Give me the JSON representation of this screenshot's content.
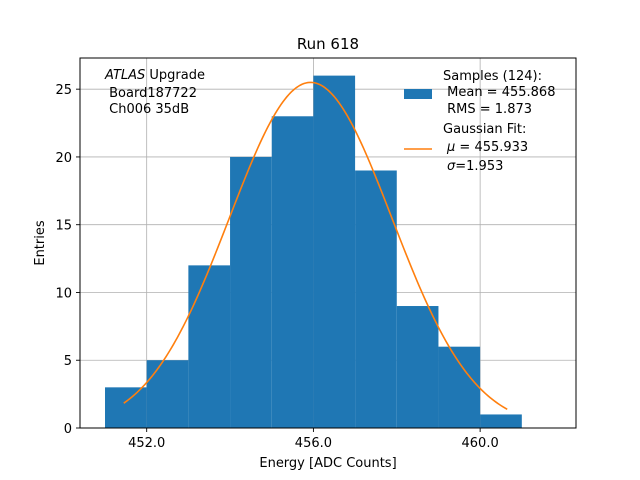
{
  "chart_data": {
    "type": "bar",
    "title": "Run 618",
    "xlabel": "Energy [ADC Counts]",
    "ylabel": "Entries",
    "xlim": [
      450.4,
      462.3
    ],
    "ylim": [
      0,
      27.3
    ],
    "xticks": [
      452.0,
      456.0,
      460.0
    ],
    "xtick_labels": [
      "452.0",
      "456.0",
      "460.0"
    ],
    "yticks": [
      0,
      5,
      10,
      15,
      20,
      25
    ],
    "ytick_labels": [
      "0",
      "5",
      "10",
      "15",
      "20",
      "25"
    ],
    "grid": true,
    "legend_position": "top-right",
    "bin_edges": [
      451.0,
      452.0,
      453.0,
      454.0,
      455.0,
      456.0,
      457.0,
      458.0,
      459.0,
      460.0,
      461.0
    ],
    "counts": [
      3,
      5,
      12,
      20,
      23,
      26,
      19,
      9,
      6,
      1
    ],
    "bar_color": "#1f77b4",
    "fit_color": "#ff7f0e",
    "fit": {
      "type": "gaussian",
      "amplitude": 25.5,
      "mu": 455.933,
      "sigma": 1.953,
      "x_range": [
        451.45,
        460.65
      ]
    },
    "annotation": {
      "experiment": "ATLAS",
      "upgrade": " Upgrade",
      "lines": [
        " Board187722",
        " Ch006 35dB"
      ]
    },
    "legend": {
      "samples": {
        "lines": [
          "Samples (124):",
          " Mean = 455.868",
          " RMS = 1.873"
        ]
      },
      "fit": {
        "title": "Gaussian Fit:",
        "mu_symbol": "μ",
        "mu_value": " = 455.933",
        "sigma_symbol": "σ",
        "sigma_value": "=1.953"
      }
    }
  }
}
